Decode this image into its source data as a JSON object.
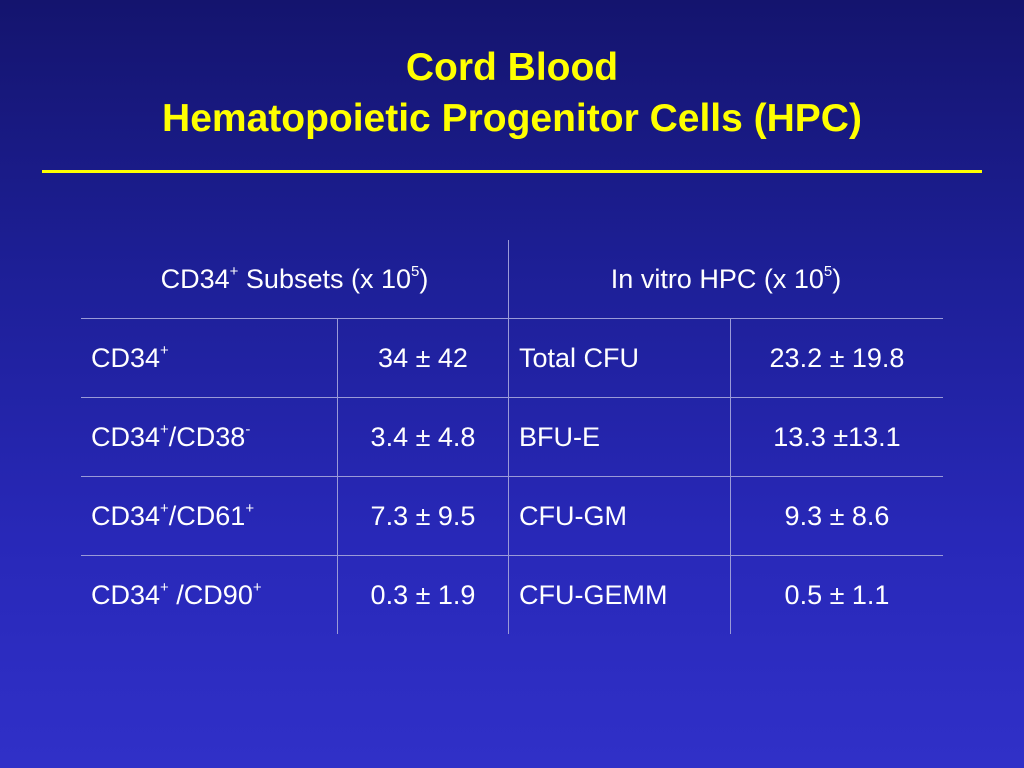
{
  "slide": {
    "title_line1": "Cord Blood",
    "title_line2": "Hematopoietic Progenitor Cells (HPC)"
  },
  "table": {
    "header_left": {
      "pre": "CD34",
      "sup1": "+",
      "mid": " Subsets (x 10",
      "sup2": "5",
      "post": ")"
    },
    "header_right": {
      "pre": "In vitro HPC (x 10",
      "sup": "5",
      "post": ")"
    },
    "rows": [
      {
        "subset": {
          "a": "CD34",
          "a_sup": "+",
          "b": "",
          "b_sup": ""
        },
        "subset_value": "34 ± 42",
        "hpc": "Total CFU",
        "hpc_value": "23.2 ± 19.8"
      },
      {
        "subset": {
          "a": "CD34",
          "a_sup": "+",
          "b": "/CD38",
          "b_sup": "-"
        },
        "subset_value": "3.4 ± 4.8",
        "hpc": "BFU-E",
        "hpc_value": "13.3 ±13.1"
      },
      {
        "subset": {
          "a": "CD34",
          "a_sup": "+",
          "b": "/CD61",
          "b_sup": "+"
        },
        "subset_value": "7.3 ± 9.5",
        "hpc": "CFU-GM",
        "hpc_value": "9.3 ± 8.6"
      },
      {
        "subset": {
          "a": "CD34",
          "a_sup": "+",
          "b": " /CD90",
          "b_sup": "+"
        },
        "subset_value": "0.3 ± 1.9",
        "hpc": "CFU-GEMM",
        "hpc_value": "0.5 ± 1.1"
      }
    ]
  }
}
